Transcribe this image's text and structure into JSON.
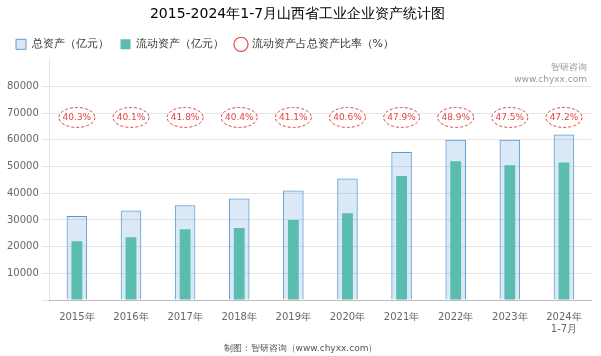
{
  "chart_data": {
    "type": "bar",
    "title": "2015-2024年1-7月山西省工业企业资产统计图",
    "categories": [
      "2015年",
      "2016年",
      "2017年",
      "2018年",
      "2019年",
      "2020年",
      "2021年",
      "2022年",
      "2023年",
      "2024年\n1-7月"
    ],
    "series": [
      {
        "name": "总资产（亿元）",
        "color": "#5b9bd5",
        "values": [
          31500,
          33500,
          35500,
          38000,
          41000,
          45500,
          55500,
          60000,
          60000,
          62000
        ]
      },
      {
        "name": "流动资产（亿元）",
        "color": "#5bbcb0",
        "values": [
          22000,
          23500,
          26500,
          27000,
          30000,
          32500,
          46500,
          52000,
          50500,
          51500
        ]
      },
      {
        "name": "流动资产占总资产比率（%）",
        "type": "label",
        "marker": "circle",
        "color": "#e84040",
        "values": [
          40.3,
          40.1,
          41.8,
          40.4,
          41.1,
          40.6,
          47.9,
          48.9,
          47.5,
          47.2
        ],
        "value_labels": [
          "40.3%",
          "40.1%",
          "41.8%",
          "40.4%",
          "41.1%",
          "40.6%",
          "47.9%",
          "48.9%",
          "47.5%",
          "47.2%"
        ]
      }
    ],
    "ylim": [
      0,
      90000
    ],
    "yticks": [
      {
        "value": 0,
        "label": ""
      },
      10000,
      20000,
      30000,
      40000,
      50000,
      60000,
      70000,
      80000
    ],
    "grid": true,
    "legend": "top",
    "annotations": [
      "智研咨询",
      "www.chyxx.com",
      "制图：智研咨询（www.chyxx.com）"
    ]
  }
}
